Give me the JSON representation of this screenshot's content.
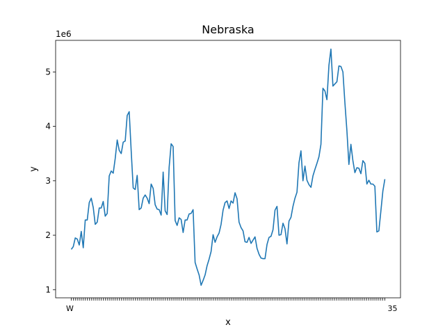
{
  "chart_data": {
    "type": "line",
    "title": "Nebraska",
    "xlabel": "x",
    "ylabel": "y",
    "y_offset_label": "1e6",
    "ylim": [
      850000,
      5580000
    ],
    "yticks": [
      1,
      2,
      3,
      4,
      5
    ],
    "ytick_multiplier": 1000000,
    "grid": false,
    "color": "#1f77b4",
    "x_tick_labels_partial": [
      "W",
      "35"
    ],
    "series": [
      {
        "values": [
          1740000,
          1790000,
          1950000,
          1930000,
          1820000,
          2070000,
          1770000,
          2280000,
          2280000,
          2600000,
          2680000,
          2510000,
          2200000,
          2240000,
          2500000,
          2500000,
          2620000,
          2350000,
          2400000,
          3090000,
          3180000,
          3140000,
          3410000,
          3750000,
          3560000,
          3500000,
          3710000,
          3730000,
          4200000,
          4270000,
          3550000,
          2870000,
          2840000,
          3100000,
          2470000,
          2500000,
          2680000,
          2740000,
          2680000,
          2580000,
          2940000,
          2860000,
          2560000,
          2480000,
          2470000,
          2370000,
          3160000,
          2450000,
          2380000,
          3250000,
          3680000,
          3630000,
          2270000,
          2180000,
          2320000,
          2290000,
          2050000,
          2280000,
          2280000,
          2390000,
          2400000,
          2470000,
          1500000,
          1380000,
          1270000,
          1080000,
          1170000,
          1270000,
          1440000,
          1560000,
          1700000,
          2010000,
          1870000,
          1970000,
          2040000,
          2200000,
          2460000,
          2600000,
          2630000,
          2490000,
          2630000,
          2590000,
          2780000,
          2670000,
          2240000,
          2140000,
          2080000,
          1880000,
          1870000,
          1960000,
          1850000,
          1910000,
          1970000,
          1760000,
          1650000,
          1580000,
          1570000,
          1570000,
          1830000,
          1960000,
          1980000,
          2100000,
          2460000,
          2530000,
          2000000,
          2010000,
          2220000,
          2120000,
          1840000,
          2260000,
          2330000,
          2530000,
          2680000,
          2790000,
          3330000,
          3550000,
          3000000,
          3270000,
          3010000,
          2930000,
          2880000,
          3090000,
          3210000,
          3320000,
          3440000,
          3670000,
          4700000,
          4650000,
          4490000,
          5120000,
          5420000,
          4740000,
          4780000,
          4820000,
          5110000,
          5100000,
          5000000,
          4430000,
          3920000,
          3300000,
          3670000,
          3370000,
          3150000,
          3240000,
          3230000,
          3130000,
          3370000,
          3320000,
          2940000,
          3010000,
          2940000,
          2940000,
          2900000,
          2060000,
          2080000,
          2440000,
          2810000,
          3030000
        ]
      }
    ]
  }
}
